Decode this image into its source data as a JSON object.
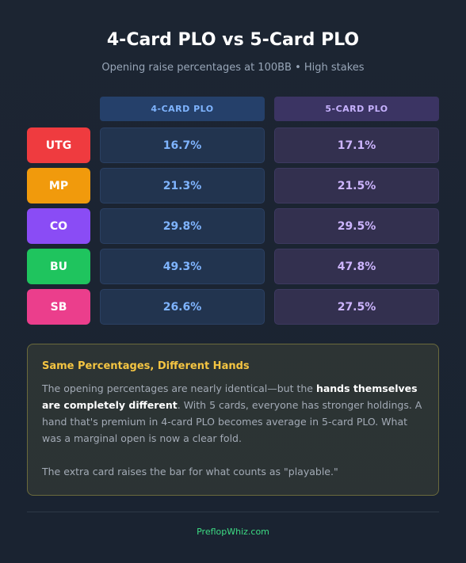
{
  "header": {
    "title": "4-Card PLO vs 5-Card PLO",
    "subtitle": "Opening raise percentages at 100BB • High stakes"
  },
  "columns": [
    "4-CARD PLO",
    "5-CARD PLO"
  ],
  "rows": [
    {
      "position": "UTG",
      "color": "#ef3b3f",
      "plo4": "16.7%",
      "plo5": "17.1%"
    },
    {
      "position": "MP",
      "color": "#f19a0c",
      "plo4": "21.3%",
      "plo5": "21.5%"
    },
    {
      "position": "CO",
      "color": "#8a4cf5",
      "plo4": "29.8%",
      "plo5": "29.5%"
    },
    {
      "position": "BU",
      "color": "#1fc45e",
      "plo4": "49.3%",
      "plo5": "47.8%"
    },
    {
      "position": "SB",
      "color": "#eb3e8c",
      "plo4": "26.6%",
      "plo5": "27.5%"
    }
  ],
  "note": {
    "title": "Same Percentages, Different Hands",
    "p1_before": "The opening percentages are nearly identical—but the ",
    "p1_bold": "hands themselves are completely different",
    "p1_after": ". With 5 cards, everyone has stronger holdings. A hand that's premium in 4-card PLO becomes average in 5-card PLO. What was a marginal open is now a clear fold.",
    "p2": "The extra card raises the bar for what counts as \"playable.\""
  },
  "footer": {
    "brand": "PreflopWhiz.com"
  }
}
